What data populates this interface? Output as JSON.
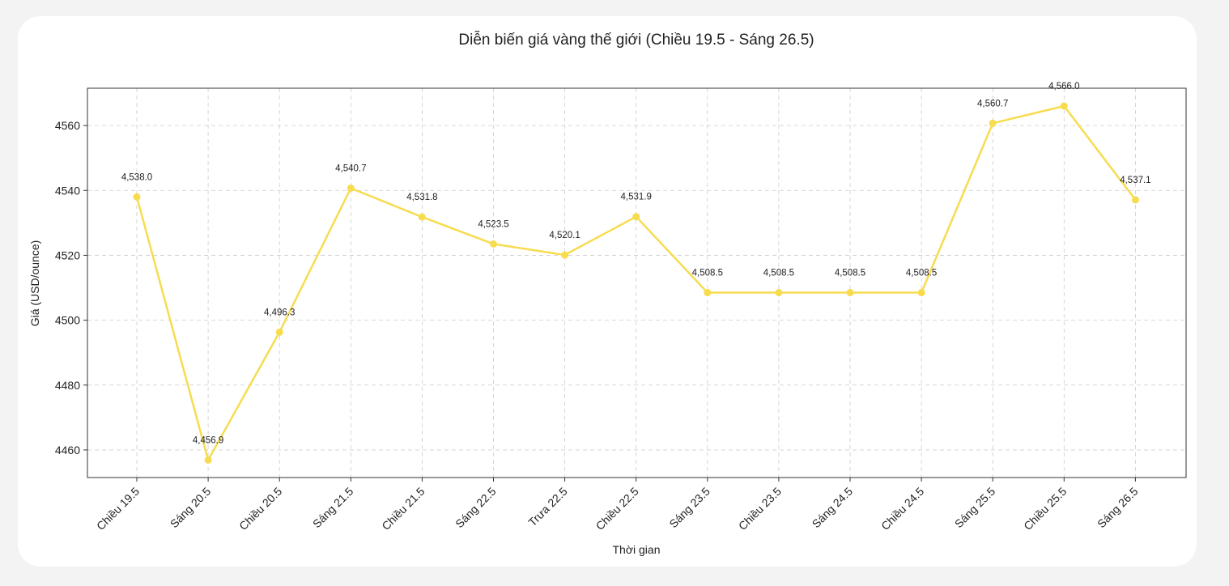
{
  "chart_data": {
    "type": "line",
    "title": "Diễn biến giá vàng thế giới (Chiều 19.5 - Sáng 26.5)",
    "xlabel": "Thời gian",
    "ylabel": "Giá (USD/ounce)",
    "categories": [
      "Chiều 19.5",
      "Sáng 20.5",
      "Chiều 20.5",
      "Sáng 21.5",
      "Chiều 21.5",
      "Sáng 22.5",
      "Trưa 22.5",
      "Chiều 22.5",
      "Sáng 23.5",
      "Chiều 23.5",
      "Sáng 24.5",
      "Chiều 24.5",
      "Sáng 25.5",
      "Chiều 25.5",
      "Sáng 26.5"
    ],
    "values": [
      4538.0,
      4456.9,
      4496.3,
      4540.7,
      4531.8,
      4523.5,
      4520.1,
      4531.9,
      4508.5,
      4508.5,
      4508.5,
      4508.5,
      4560.7,
      4566.0,
      4537.1
    ],
    "data_labels": [
      "4,538.0",
      "4,456.9",
      "4,496.3",
      "4,540.7",
      "4,531.8",
      "4,523.5",
      "4,520.1",
      "4,531.9",
      "4,508.5",
      "4,508.5",
      "4,508.5",
      "4,508.5",
      "4,560.7",
      "4,566.0",
      "4,537.1"
    ],
    "yticks": [
      4460,
      4480,
      4500,
      4520,
      4540,
      4560
    ],
    "ylim": [
      4451.5,
      4571.5
    ],
    "grid": true,
    "line_color": "#f7dc50",
    "axis_color": "#333333",
    "grid_color": "#cccccc"
  }
}
